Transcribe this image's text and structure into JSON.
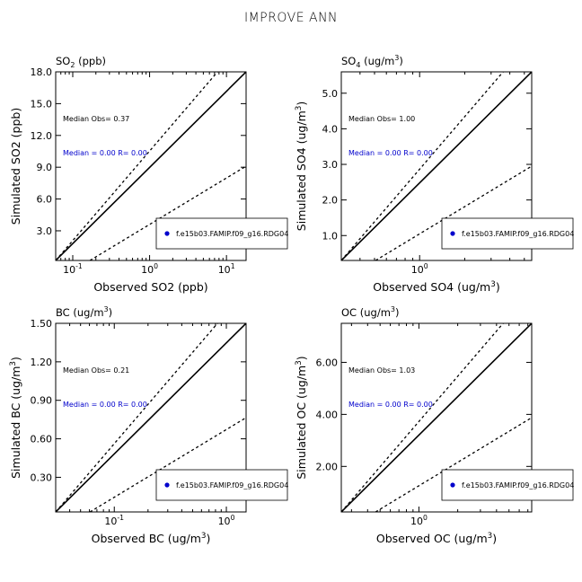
{
  "title": "IMPROVE ANN",
  "colors": {
    "axis": "#000000",
    "median_text": "#0000CC",
    "legend_marker": "#0000CC"
  },
  "chart_data": [
    {
      "type": "scatter",
      "title_main": "SO",
      "title_sub": "2",
      "title_units": "(ppb)",
      "xlabel": "Observed SO2 (ppb)",
      "ylabel": "Simulated SO2 (ppb)",
      "x_scale": "log",
      "y_scale": "linear",
      "xlim": [
        0.06,
        18
      ],
      "ylim": [
        0.2,
        18.0
      ],
      "x_ticks": [
        {
          "value": 0.1,
          "base": "10",
          "exp": "-1"
        },
        {
          "value": 1,
          "base": "10",
          "exp": "0"
        },
        {
          "value": 10,
          "base": "10",
          "exp": "1"
        }
      ],
      "y_ticks": [
        "3.0",
        "6.0",
        "9.0",
        "12.0",
        "15.0",
        "18.0"
      ],
      "y_tick_values": [
        3.0,
        6.0,
        9.0,
        12.0,
        15.0,
        18.0
      ],
      "median_obs_text": "Median Obs= 0.37",
      "median_sim_text": "Median = 0.00 R= 0.00",
      "legend": "f.e15b03.FAMIP.f09_g16.RDG04",
      "points": []
    },
    {
      "type": "scatter",
      "title_main": "SO",
      "title_sub": "4",
      "title_units": "(ug/m",
      "title_sup": "3",
      "title_close": ")",
      "xlabel": "Observed SO4 (ug/m",
      "xlabel_sup": "3",
      "xlabel_close": ")",
      "ylabel": "Simulated SO4 (ug/m",
      "ylabel_sup": "3",
      "ylabel_close": ")",
      "x_scale": "log",
      "y_scale": "linear",
      "xlim": [
        0.3,
        5.6
      ],
      "ylim": [
        0.3,
        5.6
      ],
      "x_ticks": [
        {
          "value": 1,
          "base": "10",
          "exp": "0"
        }
      ],
      "y_ticks": [
        "1.0",
        "2.0",
        "3.0",
        "4.0",
        "5.0"
      ],
      "y_tick_values": [
        1.0,
        2.0,
        3.0,
        4.0,
        5.0
      ],
      "median_obs_text": "Median Obs= 1.00",
      "median_sim_text": "Median = 0.00 R= 0.00",
      "legend": "f.e15b03.FAMIP.f09_g16.RDG04",
      "points": []
    },
    {
      "type": "scatter",
      "title_main": "BC",
      "title_units": "(ug/m",
      "title_sup": "3",
      "title_close": ")",
      "xlabel": "Observed BC (ug/m",
      "xlabel_sup": "3",
      "xlabel_close": ")",
      "ylabel": "Simulated BC (ug/m",
      "ylabel_sup": "3",
      "ylabel_close": ")",
      "x_scale": "log",
      "y_scale": "linear",
      "xlim": [
        0.03,
        1.5
      ],
      "ylim": [
        0.03,
        1.5
      ],
      "x_ticks": [
        {
          "value": 0.1,
          "base": "10",
          "exp": "-1"
        },
        {
          "value": 1,
          "base": "10",
          "exp": "0"
        }
      ],
      "y_ticks": [
        "0.30",
        "0.60",
        "0.90",
        "1.20",
        "1.50"
      ],
      "y_tick_values": [
        0.3,
        0.6,
        0.9,
        1.2,
        1.5
      ],
      "median_obs_text": "Median Obs= 0.21",
      "median_sim_text": "Median = 0.00 R= 0.00",
      "legend": "f.e15b03.FAMIP.f09_g16.RDG04",
      "points": []
    },
    {
      "type": "scatter",
      "title_main": "OC",
      "title_units": "(ug/m",
      "title_sup": "3",
      "title_close": ")",
      "xlabel": "Observed OC (ug/m",
      "xlabel_sup": "3",
      "xlabel_close": ")",
      "ylabel": "Simulated OC (ug/m",
      "ylabel_sup": "3",
      "ylabel_close": ")",
      "x_scale": "log",
      "y_scale": "linear",
      "xlim": [
        0.25,
        7.5
      ],
      "ylim": [
        0.25,
        7.5
      ],
      "x_ticks": [
        {
          "value": 1,
          "base": "10",
          "exp": "0"
        }
      ],
      "y_ticks": [
        "2.00",
        "4.00",
        "6.00"
      ],
      "y_tick_values": [
        2.0,
        4.0,
        6.0
      ],
      "median_obs_text": "Median Obs= 1.03",
      "median_sim_text": "Median = 0.00 R= 0.00",
      "legend": "f.e15b03.FAMIP.f09_g16.RDG04",
      "points": []
    }
  ]
}
